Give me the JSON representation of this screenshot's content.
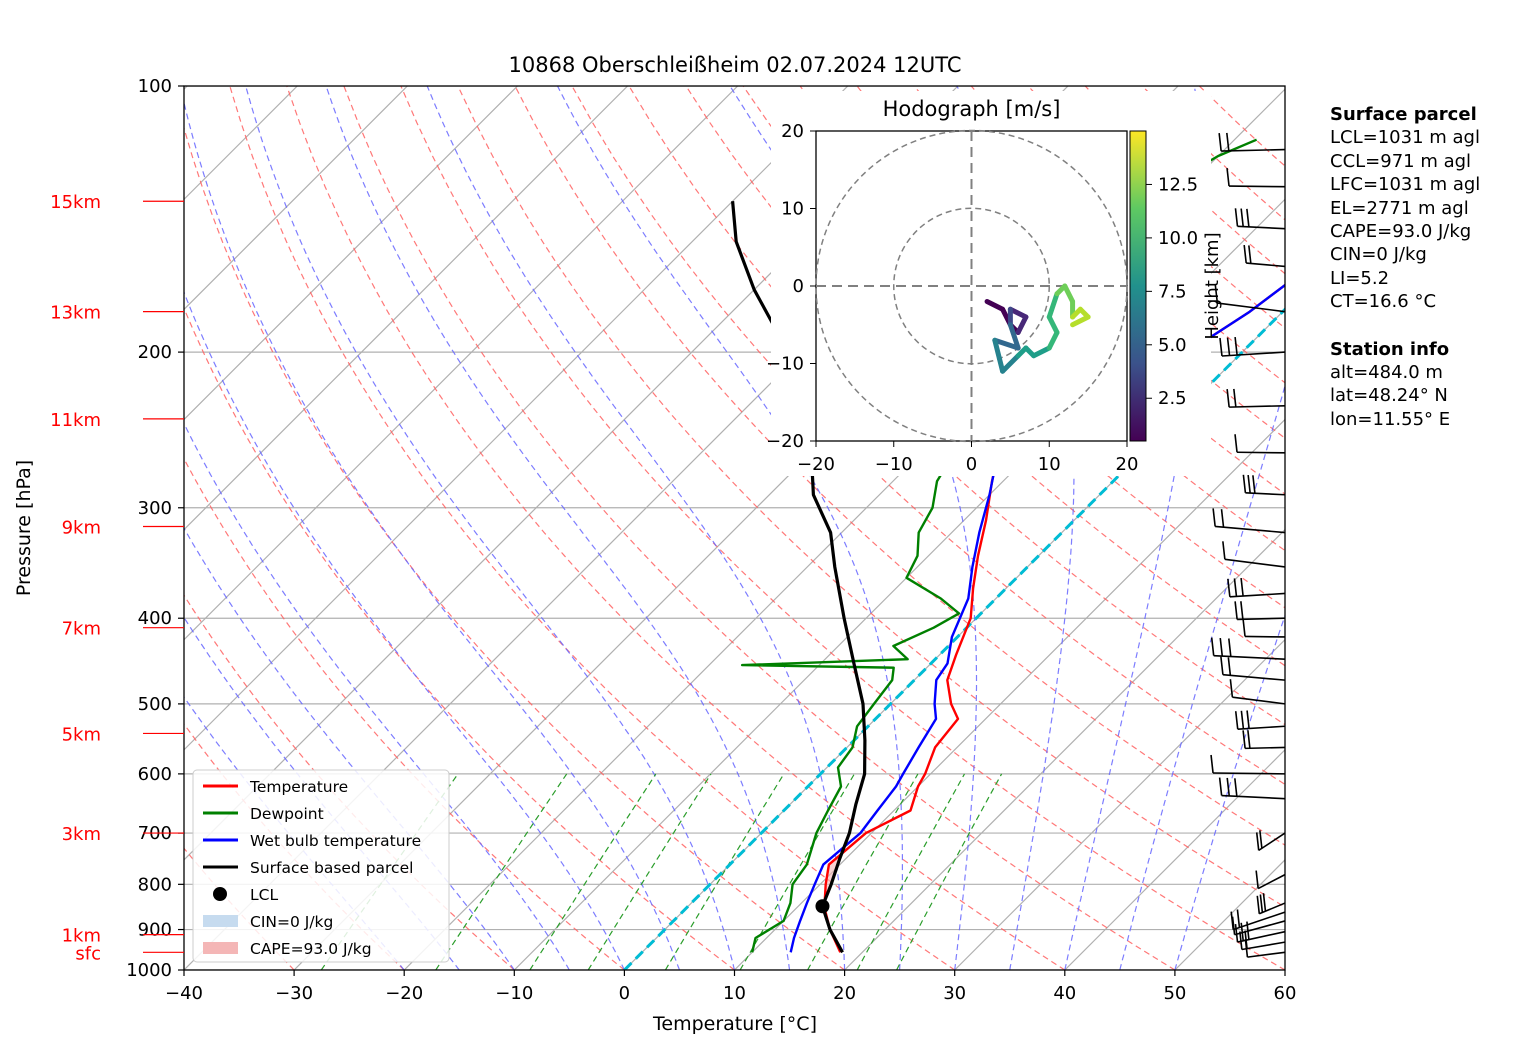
{
  "chart_data": [
    {
      "type": "line",
      "title": "10868 Oberschleißheim 02.07.2024 12UTC",
      "xlabel": "Temperature [°C]",
      "ylabel": "Pressure [hPa]",
      "xlim": [
        -40,
        60
      ],
      "ylim": [
        1000,
        100
      ],
      "y_scale": "log",
      "xticks": [
        "−40",
        "−30",
        "−20",
        "−10",
        "0",
        "10",
        "20",
        "30",
        "40",
        "50",
        "60"
      ],
      "yticks": [
        "100",
        "200",
        "300",
        "400",
        "500",
        "600",
        "700",
        "800",
        "900",
        "1000"
      ],
      "height_labels": [
        "sfc",
        "1km",
        "3km",
        "5km",
        "7km",
        "9km",
        "11km",
        "13km",
        "15km"
      ],
      "height_pressures": [
        955,
        912,
        700,
        540,
        410,
        315,
        238,
        180,
        135
      ],
      "grid": true,
      "legend_position": "lower-left",
      "legend": [
        "Temperature",
        "Dewpoint",
        "Wet bulb temperature",
        "Surface based parcel",
        "LCL",
        "CIN=0 J/kg",
        "CAPE=93.0 J/kg"
      ],
      "lcl": {
        "pressure": 847,
        "temperature": 12.2
      },
      "series": [
        {
          "name": "Temperature",
          "color": "#ff0000",
          "points": [
            [
              18,
              955
            ],
            [
              15,
              900
            ],
            [
              12.5,
              850
            ],
            [
              10.5,
              800
            ],
            [
              9,
              760
            ],
            [
              9.5,
              700
            ],
            [
              11.5,
              660
            ],
            [
              10,
              620
            ],
            [
              9.5,
              600
            ],
            [
              8,
              560
            ],
            [
              7.5,
              520
            ],
            [
              5.5,
              500
            ],
            [
              3,
              470
            ],
            [
              1.5,
              440
            ],
            [
              -0.5,
              400
            ],
            [
              -3,
              370
            ],
            [
              -5.5,
              340
            ],
            [
              -8,
              310
            ],
            [
              -11,
              280
            ],
            [
              -12.5,
              265
            ],
            [
              -11,
              250
            ],
            [
              -10,
              240
            ],
            [
              -9.5,
              230
            ],
            [
              -8,
              220
            ],
            [
              -7,
              210
            ],
            [
              -5,
              200
            ],
            [
              -4,
              190
            ],
            [
              -3,
              180
            ],
            [
              -2,
              165
            ],
            [
              -0.5,
              150
            ],
            [
              1,
              140
            ],
            [
              3,
              130
            ],
            [
              7,
              122
            ],
            [
              9,
              118
            ],
            [
              10,
              115
            ]
          ]
        },
        {
          "name": "Dewpoint",
          "color": "#008000",
          "points": [
            [
              10,
              955
            ],
            [
              9,
              920
            ],
            [
              10,
              880
            ],
            [
              9,
              840
            ],
            [
              7.5,
              800
            ],
            [
              7,
              760
            ],
            [
              5,
              700
            ],
            [
              4,
              660
            ],
            [
              3,
              620
            ],
            [
              1,
              590
            ],
            [
              0.5,
              560
            ],
            [
              -1,
              530
            ],
            [
              -1.5,
              500
            ],
            [
              -2,
              470
            ],
            [
              -3,
              455
            ],
            [
              -17,
              452
            ],
            [
              -2.5,
              445
            ],
            [
              -5,
              430
            ],
            [
              -3,
              410
            ],
            [
              -2,
              395
            ],
            [
              -5,
              380
            ],
            [
              -10,
              360
            ],
            [
              -11,
              340
            ],
            [
              -13,
              320
            ],
            [
              -14,
              300
            ],
            [
              -16,
              280
            ],
            [
              -17,
              260
            ],
            [
              -19,
              245
            ],
            [
              -20,
              230
            ],
            [
              -22,
              215
            ],
            [
              -25,
              200
            ],
            [
              -28,
              190
            ],
            [
              -28,
              180
            ],
            [
              -27,
              170
            ],
            [
              -26,
              160
            ],
            [
              -25,
              150
            ],
            [
              -23,
              140
            ],
            [
              -22,
              130
            ],
            [
              -20,
              120
            ],
            [
              -18,
              115
            ]
          ]
        },
        {
          "name": "Wet bulb temperature",
          "color": "#0000ff",
          "points": [
            [
              13.5,
              955
            ],
            [
              12.5,
              920
            ],
            [
              11.5,
              880
            ],
            [
              10.5,
              840
            ],
            [
              9.5,
              800
            ],
            [
              8.5,
              760
            ],
            [
              9,
              700
            ],
            [
              8.5,
              660
            ],
            [
              8,
              620
            ],
            [
              7.5,
              600
            ],
            [
              6.5,
              560
            ],
            [
              5.5,
              520
            ],
            [
              4,
              500
            ],
            [
              2,
              470
            ],
            [
              1.5,
              450
            ],
            [
              -0.5,
              420
            ],
            [
              -2.5,
              380
            ],
            [
              -5,
              350
            ],
            [
              -7.5,
              320
            ],
            [
              -10,
              290
            ],
            [
              -12,
              270
            ],
            [
              -12.5,
              265
            ],
            [
              -11,
              250
            ],
            [
              -10,
              240
            ],
            [
              -9.5,
              230
            ],
            [
              -8,
              220
            ],
            [
              -7,
              210
            ],
            [
              -5,
              200
            ],
            [
              -4,
              190
            ],
            [
              -3,
              180
            ],
            [
              -2,
              165
            ],
            [
              -0.5,
              150
            ],
            [
              1,
              140
            ],
            [
              3,
              130
            ],
            [
              7,
              122
            ],
            [
              9,
              118
            ],
            [
              10,
              115
            ]
          ]
        },
        {
          "name": "Surface based parcel",
          "color": "#000000",
          "points": [
            [
              18.2,
              955
            ],
            [
              15,
              900
            ],
            [
              12.2,
              847
            ],
            [
              11,
              800
            ],
            [
              9.5,
              750
            ],
            [
              8,
              700
            ],
            [
              6,
              650
            ],
            [
              4,
              600
            ],
            [
              1,
              550
            ],
            [
              -2.5,
              500
            ],
            [
              -7,
              450
            ],
            [
              -12,
              400
            ],
            [
              -17.5,
              350
            ],
            [
              -21,
              320
            ],
            [
              -26,
              290
            ],
            [
              -30,
              260
            ],
            [
              -34,
              235
            ],
            [
              -39,
              210
            ],
            [
              -44,
              190
            ],
            [
              -50,
              170
            ],
            [
              -56,
              150
            ],
            [
              -60,
              135
            ]
          ]
        }
      ],
      "isotherm_0c": "dashed cyan"
    },
    {
      "type": "line",
      "title": "Hodograph [m/s]",
      "xlim": [
        -20,
        20
      ],
      "ylim": [
        -20,
        20
      ],
      "xticks": [
        "−20",
        "−10",
        "0",
        "10",
        "20"
      ],
      "yticks": [
        "−20",
        "−10",
        "0",
        "10",
        "20"
      ],
      "colorbar_label": "Height [km]",
      "colorbar_ticks": [
        "2.5",
        "5.0",
        "7.5",
        "10.0",
        "12.5"
      ],
      "colorbar_range": [
        0.5,
        15
      ],
      "points_u_v_km": [
        [
          2,
          -2,
          0.5
        ],
        [
          4,
          -3,
          1
        ],
        [
          5,
          -5,
          1.5
        ],
        [
          6,
          -6,
          2
        ],
        [
          7,
          -4,
          3
        ],
        [
          5,
          -3,
          4
        ],
        [
          5,
          -5,
          5
        ],
        [
          6,
          -8,
          6
        ],
        [
          3,
          -7,
          7
        ],
        [
          4,
          -11,
          7.5
        ],
        [
          6,
          -9,
          8
        ],
        [
          7,
          -8,
          8.5
        ],
        [
          8,
          -9,
          9
        ],
        [
          10,
          -8,
          9.5
        ],
        [
          11,
          -6,
          10
        ],
        [
          10,
          -4,
          10.5
        ],
        [
          11,
          -1,
          11
        ],
        [
          12,
          0,
          11.5
        ],
        [
          13,
          -2,
          12
        ],
        [
          13,
          -4,
          12.5
        ],
        [
          14,
          -3,
          13
        ],
        [
          15,
          -4,
          13.5
        ],
        [
          13,
          -5,
          14
        ]
      ]
    }
  ],
  "info": {
    "surface_parcel_title": "Surface parcel",
    "surface_lines": [
      "LCL=1031 m agl",
      "CCL=971 m agl",
      "LFC=1031 m agl",
      "EL=2771 m agl",
      "CAPE=93.0 J/kg",
      "CIN=0 J/kg",
      "LI=5.2",
      "CT=16.6 °C"
    ],
    "station_title": "Station info",
    "station_lines": [
      "alt=484.0 m",
      "lat=48.24° N",
      "lon=11.55° E"
    ]
  }
}
